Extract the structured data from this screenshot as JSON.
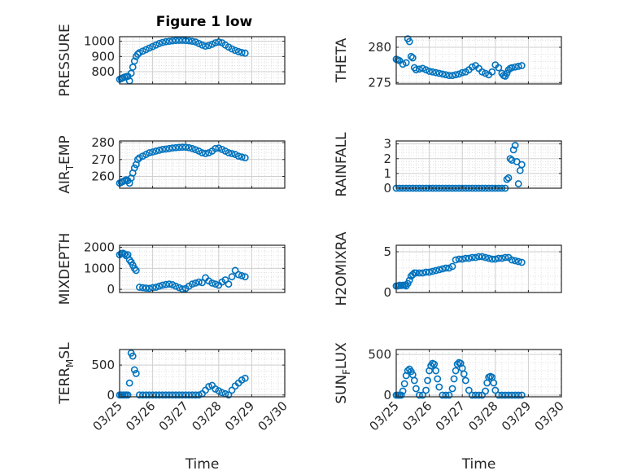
{
  "title": "Figure 1 low",
  "marker_color": "#0072BD",
  "x_ticks": [
    "03/25",
    "03/26",
    "03/27",
    "03/28",
    "03/29",
    "03/30"
  ],
  "x_label": "Time",
  "chart_data": [
    {
      "type": "scatter",
      "ylabel": "PRESSURE",
      "ylim": [
        720,
        1030
      ],
      "yticks": [
        800,
        900,
        1000
      ],
      "xlim": [
        0,
        5
      ],
      "grid": true,
      "x": [
        0.0,
        0.05,
        0.1,
        0.15,
        0.2,
        0.25,
        0.3,
        0.35,
        0.4,
        0.45,
        0.5,
        0.55,
        0.6,
        0.7,
        0.8,
        0.9,
        1.0,
        1.1,
        1.2,
        1.3,
        1.4,
        1.5,
        1.6,
        1.7,
        1.8,
        1.9,
        2.0,
        2.1,
        2.2,
        2.3,
        2.4,
        2.5,
        2.6,
        2.7,
        2.8,
        2.9,
        3.0,
        3.1,
        3.2,
        3.3,
        3.4,
        3.5,
        3.6,
        3.7,
        3.8
      ],
      "y": [
        750,
        755,
        760,
        765,
        768,
        770,
        740,
        790,
        830,
        870,
        900,
        915,
        925,
        935,
        945,
        955,
        965,
        975,
        985,
        992,
        997,
        1000,
        1003,
        1005,
        1006,
        1006,
        1005,
        1003,
        1000,
        995,
        985,
        975,
        968,
        972,
        980,
        990,
        995,
        990,
        975,
        962,
        950,
        940,
        932,
        926,
        922
      ]
    },
    {
      "type": "scatter",
      "ylabel": "THETA",
      "ylim": [
        274.8,
        281.5
      ],
      "yticks": [
        275,
        280
      ],
      "xlim": [
        0,
        5
      ],
      "grid": true,
      "x": [
        0.0,
        0.05,
        0.1,
        0.2,
        0.3,
        0.35,
        0.4,
        0.45,
        0.5,
        0.55,
        0.6,
        0.7,
        0.8,
        0.9,
        1.0,
        1.1,
        1.2,
        1.3,
        1.4,
        1.5,
        1.6,
        1.7,
        1.8,
        1.9,
        2.0,
        2.1,
        2.2,
        2.3,
        2.4,
        2.5,
        2.6,
        2.7,
        2.8,
        2.9,
        3.0,
        3.1,
        3.2,
        3.25,
        3.3,
        3.35,
        3.4,
        3.45,
        3.5,
        3.6,
        3.7,
        3.8
      ],
      "y": [
        278.3,
        278.2,
        278.1,
        277.6,
        277.8,
        281.2,
        280.8,
        278.7,
        278.5,
        277.1,
        276.8,
        276.9,
        277.0,
        276.8,
        276.6,
        276.5,
        276.4,
        276.3,
        276.2,
        276.1,
        276.0,
        276.0,
        276.1,
        276.2,
        276.4,
        276.5,
        276.8,
        277.2,
        277.4,
        277.0,
        276.5,
        276.3,
        276.1,
        276.5,
        277.5,
        277.1,
        276.3,
        276.0,
        275.9,
        276.3,
        276.8,
        277.0,
        277.1,
        277.2,
        277.3,
        277.4
      ]
    },
    {
      "type": "scatter",
      "ylabel": "AIR_TEMP",
      "ylim": [
        253,
        281
      ],
      "yticks": [
        260,
        270,
        280
      ],
      "xlim": [
        0,
        5
      ],
      "grid": true,
      "x": [
        0.0,
        0.05,
        0.1,
        0.15,
        0.2,
        0.25,
        0.3,
        0.35,
        0.4,
        0.45,
        0.5,
        0.55,
        0.6,
        0.7,
        0.8,
        0.9,
        1.0,
        1.1,
        1.2,
        1.3,
        1.4,
        1.5,
        1.6,
        1.7,
        1.8,
        1.9,
        2.0,
        2.1,
        2.2,
        2.3,
        2.4,
        2.5,
        2.6,
        2.7,
        2.8,
        2.9,
        3.0,
        3.1,
        3.2,
        3.3,
        3.4,
        3.5,
        3.6,
        3.7,
        3.8
      ],
      "y": [
        256,
        256.5,
        257,
        257.5,
        258,
        257.5,
        256,
        259,
        262,
        265,
        267,
        270,
        271,
        272,
        273,
        274,
        274.5,
        275,
        275.5,
        276,
        276.2,
        276.5,
        276.8,
        277,
        277.2,
        277.3,
        277.3,
        277,
        276.5,
        275.8,
        275,
        274,
        273.5,
        274,
        275,
        276.5,
        276.8,
        276,
        275,
        274,
        273.5,
        273,
        272,
        271.5,
        271
      ]
    },
    {
      "type": "scatter",
      "ylabel": "RAINFALL",
      "ylim": [
        0,
        3.2
      ],
      "yticks": [
        0,
        1,
        2,
        3
      ],
      "xlim": [
        0,
        5
      ],
      "grid": true,
      "x": [
        0.0,
        0.1,
        0.2,
        0.3,
        0.4,
        0.5,
        0.6,
        0.7,
        0.8,
        0.9,
        1.0,
        1.1,
        1.2,
        1.3,
        1.4,
        1.5,
        1.6,
        1.7,
        1.8,
        1.9,
        2.0,
        2.1,
        2.2,
        2.3,
        2.4,
        2.5,
        2.6,
        2.7,
        2.8,
        2.9,
        3.0,
        3.1,
        3.2,
        3.3,
        3.35,
        3.4,
        3.45,
        3.5,
        3.55,
        3.6,
        3.65,
        3.7,
        3.75,
        3.8
      ],
      "y": [
        0,
        0,
        0,
        0,
        0,
        0,
        0,
        0,
        0,
        0,
        0,
        0,
        0,
        0,
        0,
        0,
        0,
        0,
        0,
        0,
        0,
        0,
        0,
        0,
        0,
        0,
        0,
        0,
        0,
        0,
        0,
        0,
        0,
        0,
        0.6,
        0.7,
        2.0,
        1.9,
        2.6,
        2.9,
        1.8,
        0.3,
        1.2,
        1.6
      ]
    },
    {
      "type": "scatter",
      "ylabel": "MIXDEPTH",
      "ylim": [
        -150,
        2100
      ],
      "yticks": [
        0,
        1000,
        2000
      ],
      "xlim": [
        0,
        5
      ],
      "grid": true,
      "x": [
        0.0,
        0.05,
        0.1,
        0.15,
        0.2,
        0.25,
        0.3,
        0.35,
        0.4,
        0.45,
        0.5,
        0.6,
        0.7,
        0.8,
        0.9,
        1.0,
        1.1,
        1.2,
        1.3,
        1.4,
        1.5,
        1.6,
        1.7,
        1.8,
        1.9,
        2.0,
        2.1,
        2.2,
        2.3,
        2.4,
        2.5,
        2.6,
        2.7,
        2.8,
        2.9,
        3.0,
        3.1,
        3.2,
        3.3,
        3.4,
        3.5,
        3.6,
        3.7,
        3.8
      ],
      "y": [
        1650,
        1700,
        1720,
        1680,
        1600,
        1650,
        1400,
        1300,
        1150,
        1000,
        900,
        100,
        80,
        60,
        50,
        80,
        100,
        150,
        200,
        230,
        250,
        220,
        150,
        80,
        20,
        40,
        150,
        250,
        300,
        350,
        320,
        550,
        400,
        300,
        250,
        200,
        350,
        450,
        250,
        600,
        900,
        700,
        650,
        600
      ]
    },
    {
      "type": "scatter",
      "ylabel": "H2OMIXRA",
      "ylim": [
        0,
        5.8
      ],
      "yticks": [
        0,
        5
      ],
      "xlim": [
        0,
        5
      ],
      "grid": true,
      "x": [
        0.0,
        0.05,
        0.1,
        0.15,
        0.2,
        0.25,
        0.3,
        0.35,
        0.4,
        0.45,
        0.5,
        0.55,
        0.6,
        0.7,
        0.8,
        0.9,
        1.0,
        1.1,
        1.2,
        1.3,
        1.4,
        1.5,
        1.6,
        1.7,
        1.8,
        1.9,
        2.0,
        2.1,
        2.2,
        2.3,
        2.4,
        2.5,
        2.6,
        2.7,
        2.8,
        2.9,
        3.0,
        3.1,
        3.2,
        3.3,
        3.4,
        3.5,
        3.6,
        3.7,
        3.8
      ],
      "y": [
        0.8,
        0.8,
        0.9,
        0.85,
        0.9,
        0.9,
        0.8,
        1.1,
        1.5,
        2.0,
        2.2,
        2.4,
        2.4,
        2.4,
        2.4,
        2.5,
        2.5,
        2.6,
        2.7,
        2.8,
        2.9,
        3.0,
        3.0,
        3.2,
        4.0,
        4.1,
        4.1,
        4.2,
        4.2,
        4.3,
        4.3,
        4.4,
        4.4,
        4.3,
        4.2,
        4.1,
        4.1,
        4.2,
        4.2,
        4.3,
        4.3,
        4.0,
        3.9,
        3.8,
        3.7
      ]
    },
    {
      "type": "scatter",
      "ylabel": "TERR_MSL",
      "ylim": [
        -30,
        760
      ],
      "yticks": [
        0,
        500
      ],
      "xlim": [
        0,
        5
      ],
      "grid": true,
      "x": [
        0.0,
        0.05,
        0.1,
        0.15,
        0.2,
        0.25,
        0.3,
        0.35,
        0.4,
        0.45,
        0.5,
        0.6,
        0.7,
        0.8,
        0.9,
        1.0,
        1.1,
        1.2,
        1.3,
        1.4,
        1.5,
        1.6,
        1.7,
        1.8,
        1.9,
        2.0,
        2.1,
        2.2,
        2.3,
        2.4,
        2.5,
        2.6,
        2.7,
        2.8,
        2.9,
        3.0,
        3.1,
        3.2,
        3.3,
        3.4,
        3.5,
        3.6,
        3.7,
        3.8
      ],
      "y": [
        0,
        0,
        0,
        0,
        0,
        0,
        200,
        700,
        650,
        420,
        360,
        0,
        0,
        0,
        0,
        0,
        0,
        0,
        0,
        0,
        0,
        0,
        0,
        0,
        0,
        0,
        0,
        0,
        0,
        0,
        20,
        80,
        140,
        160,
        100,
        70,
        40,
        20,
        0,
        80,
        150,
        200,
        250,
        280
      ]
    },
    {
      "type": "scatter",
      "ylabel": "SUN_FLUX",
      "ylim": [
        -20,
        560
      ],
      "yticks": [
        0,
        500
      ],
      "xlim": [
        0,
        5
      ],
      "grid": true,
      "x": [
        0.0,
        0.05,
        0.1,
        0.15,
        0.2,
        0.25,
        0.3,
        0.35,
        0.4,
        0.45,
        0.5,
        0.55,
        0.6,
        0.7,
        0.8,
        0.9,
        0.95,
        1.0,
        1.05,
        1.1,
        1.15,
        1.2,
        1.25,
        1.3,
        1.4,
        1.5,
        1.6,
        1.7,
        1.75,
        1.8,
        1.85,
        1.9,
        1.95,
        2.0,
        2.05,
        2.1,
        2.2,
        2.3,
        2.4,
        2.5,
        2.6,
        2.7,
        2.75,
        2.8,
        2.85,
        2.9,
        2.95,
        3.0,
        3.1,
        3.2,
        3.3,
        3.4,
        3.5,
        3.6,
        3.7,
        3.8
      ],
      "y": [
        0,
        0,
        0,
        0,
        50,
        140,
        240,
        300,
        320,
        290,
        250,
        180,
        80,
        0,
        0,
        60,
        180,
        300,
        360,
        390,
        380,
        300,
        200,
        100,
        0,
        0,
        0,
        80,
        200,
        300,
        380,
        400,
        390,
        330,
        260,
        180,
        60,
        0,
        0,
        0,
        0,
        50,
        150,
        220,
        230,
        220,
        150,
        60,
        0,
        0,
        0,
        0,
        0,
        0,
        0,
        0
      ]
    }
  ]
}
